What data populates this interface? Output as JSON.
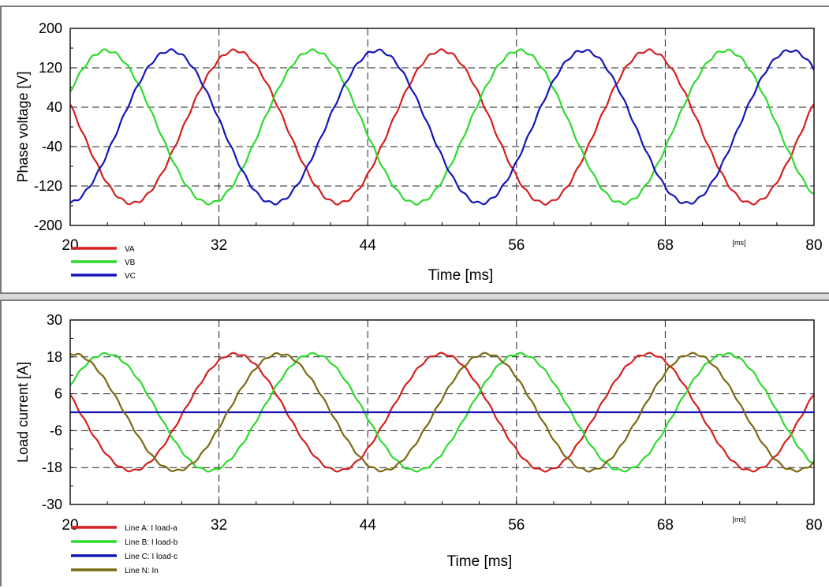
{
  "charts": [
    {
      "ylabel": "Phase voltage [V]",
      "xlabel": "Time [ms]",
      "xunit": "[ms]",
      "yticks": [
        "200",
        "120",
        "40",
        "-40",
        "-120",
        "-200"
      ],
      "xticks": [
        "20",
        "32",
        "44",
        "56",
        "68",
        "80"
      ],
      "legend": [
        "VA",
        "VB",
        "VC"
      ]
    },
    {
      "ylabel": "Load current [A]",
      "xlabel": "Time [ms]",
      "xunit": "[ms]",
      "yticks": [
        "30",
        "18",
        "6",
        "-6",
        "-18",
        "-30"
      ],
      "xticks": [
        "20",
        "32",
        "44",
        "56",
        "68",
        "80"
      ],
      "legend": [
        "Line A: I load-a",
        "Line B: I load-b",
        "Line C: I load-c",
        "Line N: In"
      ]
    }
  ],
  "chart_data": [
    {
      "type": "line",
      "ylabel": "Phase voltage [V]",
      "xlabel": "Time [ms]",
      "xlim": [
        20,
        80
      ],
      "ylim": [
        -200,
        200
      ],
      "grid": true,
      "legend_position": "bottom-left",
      "series": [
        {
          "name": "VA",
          "color": "#d42020",
          "amplitude": 155,
          "peak_at_ms": [
            33.3,
            50,
            66.7
          ],
          "period_ms": 16.67
        },
        {
          "name": "VB",
          "color": "#2edb2e",
          "amplitude": 155,
          "peak_at_ms": [
            22.9,
            39.6,
            56.3,
            73
          ],
          "period_ms": 16.67
        },
        {
          "name": "VC",
          "color": "#1616b8",
          "amplitude": 155,
          "peak_at_ms": [
            28.1,
            44.8,
            61.5,
            78.2
          ],
          "period_ms": 16.67
        }
      ]
    },
    {
      "type": "line",
      "ylabel": "Load current [A]",
      "xlabel": "Time [ms]",
      "xlim": [
        20,
        80
      ],
      "ylim": [
        -30,
        30
      ],
      "grid": true,
      "legend_position": "bottom-left",
      "series": [
        {
          "name": "Line A: I load-a",
          "color": "#d42020",
          "amplitude": 19,
          "peak_at_ms": [
            33.3,
            50,
            66.7
          ],
          "period_ms": 16.67
        },
        {
          "name": "Line B: I load-b",
          "color": "#2edb2e",
          "amplitude": 19,
          "peak_at_ms": [
            22.9,
            39.6,
            56.3,
            73
          ],
          "period_ms": 16.67
        },
        {
          "name": "Line C: I load-c",
          "color": "#1616b8",
          "constant": 0
        },
        {
          "name": "Line N: In",
          "color": "#7a6a14",
          "amplitude": 19,
          "peak_at_ms": [
            20.2,
            36.7,
            53.5,
            70
          ],
          "period_ms": 16.67
        }
      ]
    }
  ]
}
